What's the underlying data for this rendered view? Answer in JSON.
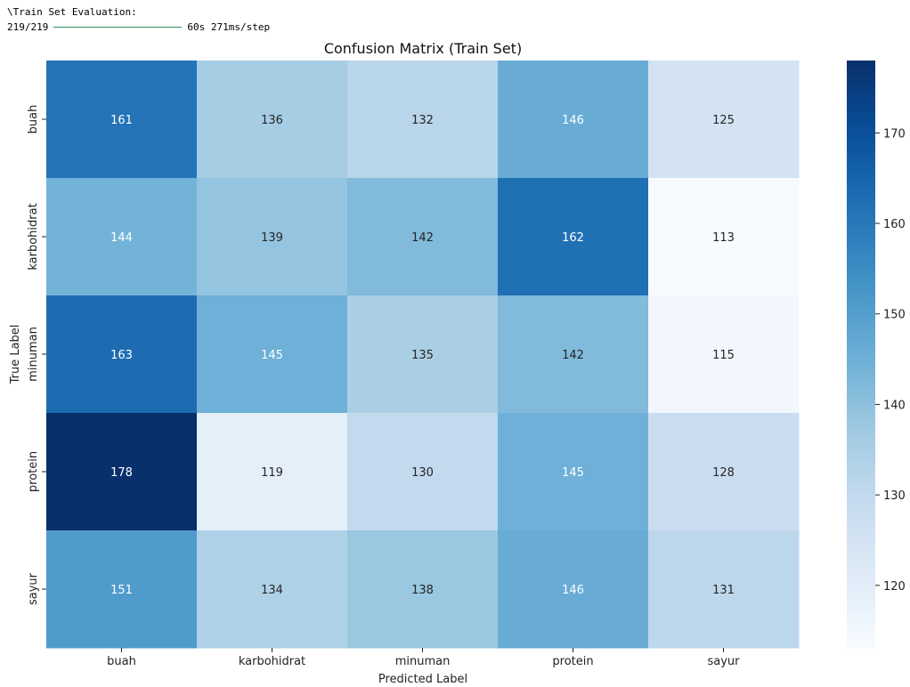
{
  "console": {
    "line1": "\\Train Set Evaluation:",
    "progress_steps": "219/219",
    "progress_time": "60s 271ms/step",
    "progress": 1.0
  },
  "colors": {
    "cmap": "Blues",
    "dark_text": "#262626",
    "light_text": "#ffffff"
  },
  "chart_data": {
    "type": "heatmap",
    "title": "Confusion Matrix (Train Set)",
    "xlabel": "Predicted Label",
    "ylabel": "True Label",
    "x_categories": [
      "buah",
      "karbohidrat",
      "minuman",
      "protein",
      "sayur"
    ],
    "y_categories": [
      "buah",
      "karbohidrat",
      "minuman",
      "protein",
      "sayur"
    ],
    "values": [
      [
        161,
        136,
        132,
        146,
        125
      ],
      [
        144,
        139,
        142,
        162,
        113
      ],
      [
        163,
        145,
        135,
        142,
        115
      ],
      [
        178,
        119,
        130,
        145,
        128
      ],
      [
        151,
        134,
        138,
        146,
        131
      ]
    ],
    "vmin": 113,
    "vmax": 178,
    "colorbar_ticks": [
      120,
      130,
      140,
      150,
      160,
      170
    ],
    "colorbar": "right"
  }
}
